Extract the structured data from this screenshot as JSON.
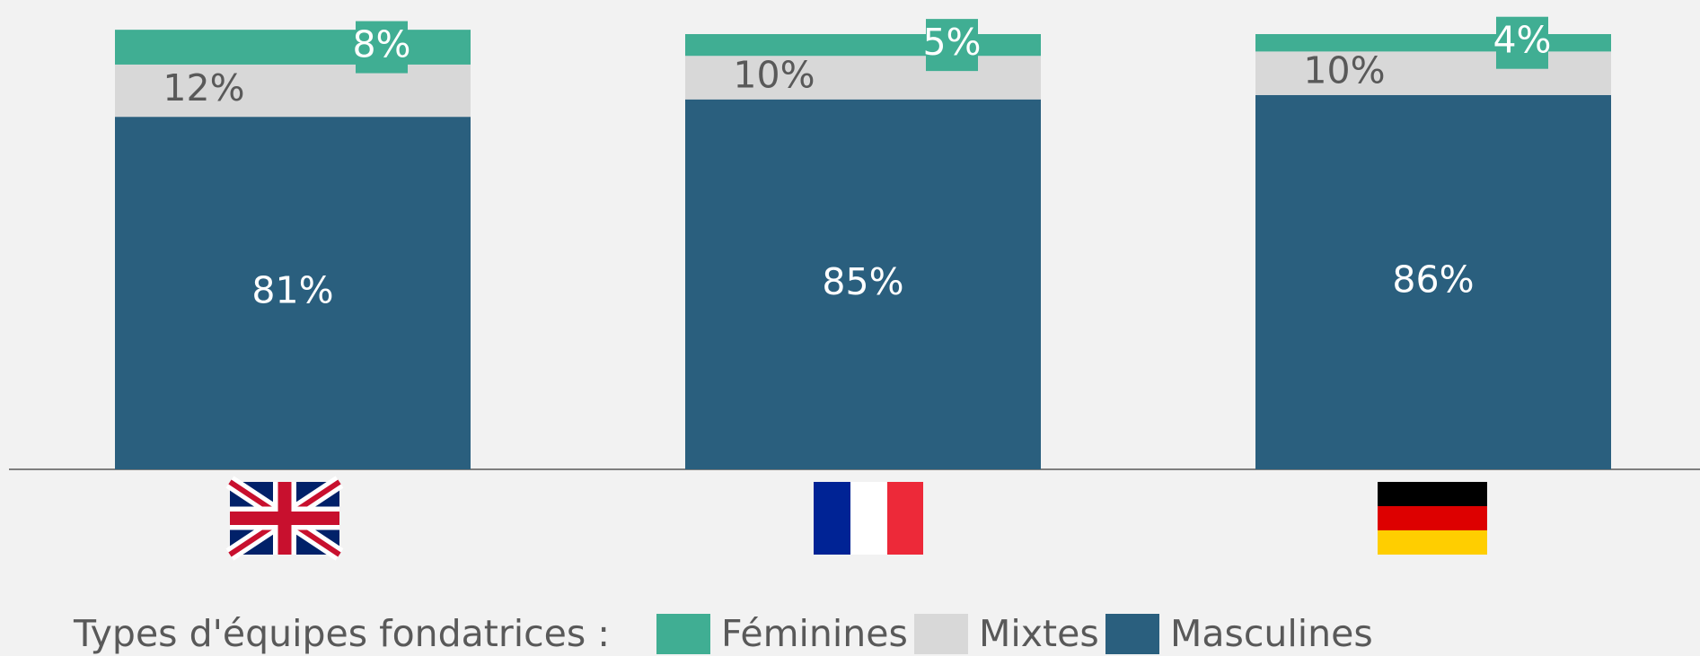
{
  "chart_data": {
    "type": "stacked_bar",
    "categories": [
      null,
      null,
      null
    ],
    "legend_title": "Types d'équipes fondatrices :",
    "series": [
      {
        "name": "Masculines",
        "color": "#2a5f7e",
        "values": [
          81,
          85,
          86
        ],
        "value_labels": [
          "81%",
          "85%",
          "86%"
        ]
      },
      {
        "name": "Mixtes",
        "color": "#d8d8d8",
        "values": [
          12,
          10,
          10
        ],
        "value_labels": [
          "12%",
          "10%",
          "10%"
        ]
      },
      {
        "name": "Féminines",
        "color": "#40ae93",
        "values": [
          8,
          5,
          4
        ],
        "value_labels": [
          "8%",
          "5%",
          "4%"
        ]
      }
    ]
  }
}
